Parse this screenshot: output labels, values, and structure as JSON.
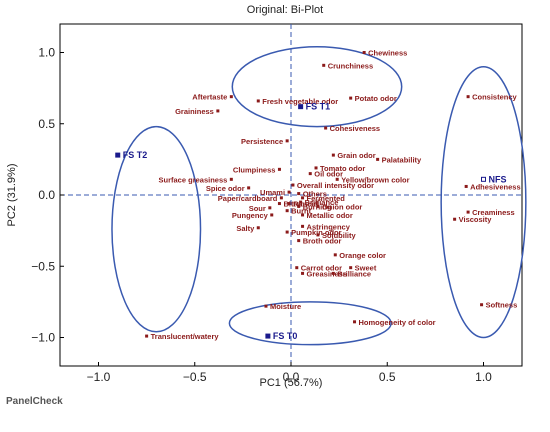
{
  "footer": "PanelCheck",
  "chart_data": {
    "type": "scatter",
    "title": "Original: Bi-Plot",
    "xlabel": "PC1 (56.7%)",
    "ylabel": "PC2 (31.9%)",
    "xlim": [
      -1.2,
      1.2
    ],
    "ylim": [
      -1.2,
      1.2
    ],
    "x_ticks": [
      -1.0,
      -0.5,
      0.0,
      0.5,
      1.0
    ],
    "y_ticks": [
      -1.0,
      -0.5,
      0.0,
      0.5,
      1.0
    ],
    "x_tick_labels": [
      "−1.0",
      "−0.5",
      "0.0",
      "0.5",
      "1.0"
    ],
    "y_tick_labels": [
      "−1.0",
      "−0.5",
      "0.0",
      "0.5",
      "1.0"
    ],
    "grid": false,
    "reference_lines": [
      {
        "axis": "x",
        "value": 0
      },
      {
        "axis": "y",
        "value": 0
      }
    ],
    "colors": {
      "attribute": "#8b1a1a",
      "sample": "#1a1a8c",
      "ellipse": "#3a5ab0",
      "refline": "#3a5ab0"
    },
    "samples": [
      {
        "name": "FS T1",
        "x": 0.05,
        "y": 0.62
      },
      {
        "name": "FS T2",
        "x": -0.9,
        "y": 0.28
      },
      {
        "name": "FS T0",
        "x": -0.12,
        "y": -0.99
      },
      {
        "name": "NFS",
        "x": 1.0,
        "y": 0.11
      }
    ],
    "attributes": [
      {
        "name": "Chewiness",
        "x": 0.38,
        "y": 1.0
      },
      {
        "name": "Crunchiness",
        "x": 0.17,
        "y": 0.91
      },
      {
        "name": "Aftertaste",
        "x": -0.31,
        "y": 0.69
      },
      {
        "name": "Fresh vegetable odor",
        "x": -0.17,
        "y": 0.66
      },
      {
        "name": "Potato odor",
        "x": 0.31,
        "y": 0.68
      },
      {
        "name": "Graininess",
        "x": -0.38,
        "y": 0.59
      },
      {
        "name": "Consistency",
        "x": 0.92,
        "y": 0.69
      },
      {
        "name": "Cohesiveness",
        "x": 0.18,
        "y": 0.47
      },
      {
        "name": "Persistence",
        "x": -0.02,
        "y": 0.38
      },
      {
        "name": "Grain odor",
        "x": 0.22,
        "y": 0.28
      },
      {
        "name": "Palatability",
        "x": 0.45,
        "y": 0.25
      },
      {
        "name": "Tomato odor",
        "x": 0.13,
        "y": 0.19
      },
      {
        "name": "Clumpiness",
        "x": -0.06,
        "y": 0.18
      },
      {
        "name": "Oil odor",
        "x": 0.1,
        "y": 0.15
      },
      {
        "name": "Yellow/brown color",
        "x": 0.24,
        "y": 0.11
      },
      {
        "name": "Surface greasiness",
        "x": -0.31,
        "y": 0.11
      },
      {
        "name": "Overall intensity odor",
        "x": 0.01,
        "y": 0.07
      },
      {
        "name": "Spice odor",
        "x": -0.22,
        "y": 0.05
      },
      {
        "name": "Umami",
        "x": -0.01,
        "y": 0.02
      },
      {
        "name": "Others",
        "x": 0.04,
        "y": 0.01
      },
      {
        "name": "Fermented",
        "x": 0.06,
        "y": -0.02
      },
      {
        "name": "Paper/cardboard",
        "x": -0.05,
        "y": -0.02
      },
      {
        "name": "Bitter",
        "x": -0.06,
        "y": -0.06
      },
      {
        "name": "Rancid",
        "x": -0.01,
        "y": -0.06
      },
      {
        "name": "Brilliance",
        "x": 0.05,
        "y": -0.05
      },
      {
        "name": "Sour",
        "x": -0.11,
        "y": -0.09
      },
      {
        "name": "Burning",
        "x": 0.04,
        "y": -0.08
      },
      {
        "name": "Onion odor",
        "x": 0.14,
        "y": -0.08
      },
      {
        "name": "Burnt",
        "x": -0.02,
        "y": -0.11
      },
      {
        "name": "Pungency",
        "x": -0.1,
        "y": -0.14
      },
      {
        "name": "Metallic odor",
        "x": 0.06,
        "y": -0.14
      },
      {
        "name": "Astringency",
        "x": 0.06,
        "y": -0.22
      },
      {
        "name": "Salty",
        "x": -0.17,
        "y": -0.23
      },
      {
        "name": "Pumpkin odor",
        "x": -0.02,
        "y": -0.26
      },
      {
        "name": "Solubility",
        "x": 0.14,
        "y": -0.28
      },
      {
        "name": "Broth odor",
        "x": 0.04,
        "y": -0.32
      },
      {
        "name": "Orange color",
        "x": 0.23,
        "y": -0.42
      },
      {
        "name": "Carrot odor",
        "x": 0.03,
        "y": -0.51
      },
      {
        "name": "Sweet",
        "x": 0.31,
        "y": -0.51
      },
      {
        "name": "Greasiness",
        "x": 0.06,
        "y": -0.55
      },
      {
        "name": "Brilliance",
        "x": 0.22,
        "y": -0.55
      },
      {
        "name": "Creaminess",
        "x": 0.92,
        "y": -0.12
      },
      {
        "name": "Adhesiveness",
        "x": 0.91,
        "y": 0.06
      },
      {
        "name": "Viscosity",
        "x": 0.85,
        "y": -0.17
      },
      {
        "name": "Softness",
        "x": 0.99,
        "y": -0.77
      },
      {
        "name": "Moisture",
        "x": -0.13,
        "y": -0.78
      },
      {
        "name": "Homogeneity of color",
        "x": 0.33,
        "y": -0.89
      },
      {
        "name": "Translucent/watery",
        "x": -0.75,
        "y": -0.99
      }
    ],
    "ellipses": [
      {
        "cx": 0.135,
        "cy": 0.76,
        "rx": 0.44,
        "ry": 0.28
      },
      {
        "cx": -0.7,
        "cy": -0.24,
        "rx": 0.23,
        "ry": 0.72
      },
      {
        "cx": 1.0,
        "cy": -0.05,
        "rx": 0.22,
        "ry": 0.95
      },
      {
        "cx": 0.1,
        "cy": -0.9,
        "rx": 0.42,
        "ry": 0.15
      }
    ]
  }
}
